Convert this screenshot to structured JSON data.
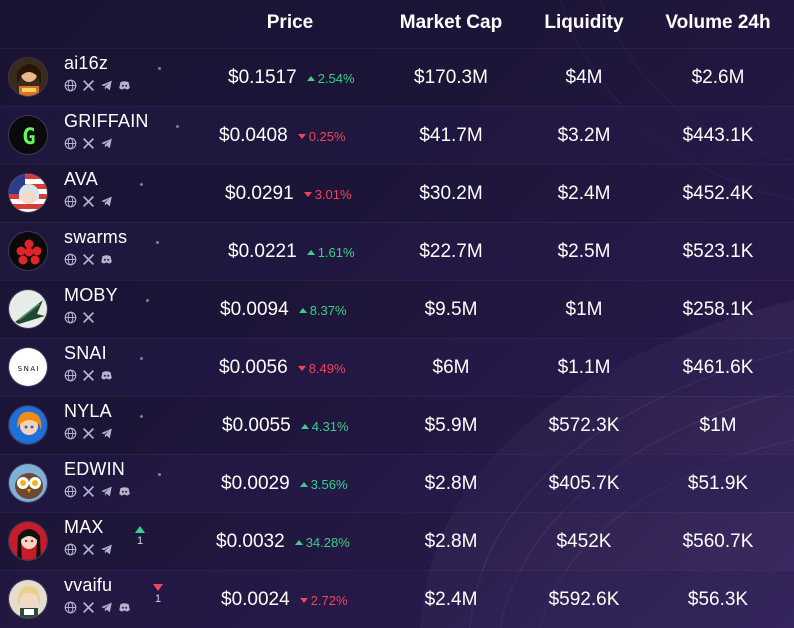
{
  "header": {
    "price": "Price",
    "market_cap": "Market Cap",
    "liquidity": "Liquidity",
    "volume": "Volume 24h"
  },
  "colors": {
    "up": "#35d18a",
    "down": "#f0455a",
    "background": "#1d1538"
  },
  "rows": [
    {
      "name": "ai16z",
      "socials": [
        "globe-icon",
        "x-icon",
        "telegram-icon",
        "discord-icon"
      ],
      "price": "$0.1517",
      "change": "2.54%",
      "direction": "up",
      "market_cap": "$170.3M",
      "liquidity": "$4M",
      "volume": "$2.6M",
      "rank_change": ""
    },
    {
      "name": "GRIFFAIN",
      "socials": [
        "globe-icon",
        "x-icon",
        "telegram-icon"
      ],
      "price": "$0.0408",
      "change": "0.25%",
      "direction": "down",
      "market_cap": "$41.7M",
      "liquidity": "$3.2M",
      "volume": "$443.1K",
      "rank_change": ""
    },
    {
      "name": "AVA",
      "socials": [
        "globe-icon",
        "x-icon",
        "telegram-icon"
      ],
      "price": "$0.0291",
      "change": "3.01%",
      "direction": "down",
      "market_cap": "$30.2M",
      "liquidity": "$2.4M",
      "volume": "$452.4K",
      "rank_change": ""
    },
    {
      "name": "swarms",
      "socials": [
        "globe-icon",
        "x-icon",
        "discord-icon"
      ],
      "price": "$0.0221",
      "change": "1.61%",
      "direction": "up",
      "market_cap": "$22.7M",
      "liquidity": "$2.5M",
      "volume": "$523.1K",
      "rank_change": ""
    },
    {
      "name": "MOBY",
      "socials": [
        "globe-icon",
        "x-icon"
      ],
      "price": "$0.0094",
      "change": "8.37%",
      "direction": "up",
      "market_cap": "$9.5M",
      "liquidity": "$1M",
      "volume": "$258.1K",
      "rank_change": ""
    },
    {
      "name": "SNAI",
      "socials": [
        "globe-icon",
        "x-icon",
        "discord-icon"
      ],
      "price": "$0.0056",
      "change": "8.49%",
      "direction": "down",
      "market_cap": "$6M",
      "liquidity": "$1.1M",
      "volume": "$461.6K",
      "rank_change": ""
    },
    {
      "name": "NYLA",
      "socials": [
        "globe-icon",
        "x-icon",
        "telegram-icon"
      ],
      "price": "$0.0055",
      "change": "4.31%",
      "direction": "up",
      "market_cap": "$5.9M",
      "liquidity": "$572.3K",
      "volume": "$1M",
      "rank_change": ""
    },
    {
      "name": "EDWIN",
      "socials": [
        "globe-icon",
        "x-icon",
        "telegram-icon",
        "discord-icon"
      ],
      "price": "$0.0029",
      "change": "3.56%",
      "direction": "up",
      "market_cap": "$2.8M",
      "liquidity": "$405.7K",
      "volume": "$51.9K",
      "rank_change": ""
    },
    {
      "name": "MAX",
      "socials": [
        "globe-icon",
        "x-icon",
        "telegram-icon"
      ],
      "price": "$0.0032",
      "change": "34.28%",
      "direction": "up",
      "market_cap": "$2.8M",
      "liquidity": "$452K",
      "volume": "$560.7K",
      "rank_change": "1",
      "rank_direction": "up"
    },
    {
      "name": "vvaifu",
      "socials": [
        "globe-icon",
        "x-icon",
        "telegram-icon",
        "discord-icon"
      ],
      "price": "$0.0024",
      "change": "2.72%",
      "direction": "down",
      "market_cap": "$2.4M",
      "liquidity": "$592.6K",
      "volume": "$56.3K",
      "rank_change": "1",
      "rank_direction": "down"
    }
  ]
}
